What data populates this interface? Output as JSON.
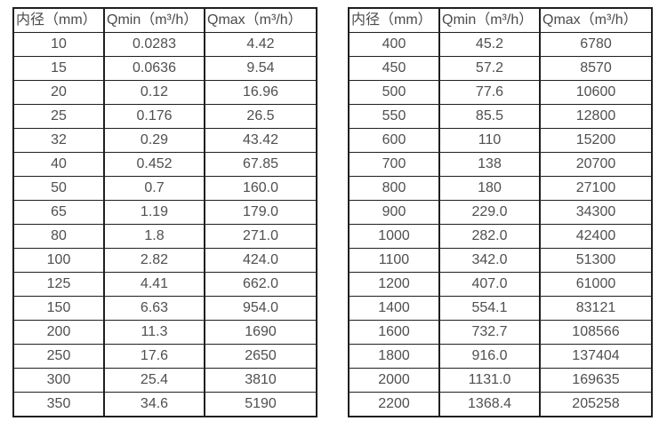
{
  "page": {
    "description": "Flow meter diameter vs minimum and maximum flow rate specification tables",
    "background_color": "#ffffff",
    "border_color": "#1f1f1f",
    "text_color": "#4a4a4a"
  },
  "tables": [
    {
      "name": "flow-spec-table-small-diameters",
      "headers": [
        "内径（mm）",
        "Qmin（m³/h）",
        "Qmax（m³/h）"
      ],
      "rows": [
        [
          "10",
          "0.0283",
          "4.42"
        ],
        [
          "15",
          "0.0636",
          "9.54"
        ],
        [
          "20",
          "0.12",
          "16.96"
        ],
        [
          "25",
          "0.176",
          "26.5"
        ],
        [
          "32",
          "0.29",
          "43.42"
        ],
        [
          "40",
          "0.452",
          "67.85"
        ],
        [
          "50",
          "0.7",
          "160.0"
        ],
        [
          "65",
          "1.19",
          "179.0"
        ],
        [
          "80",
          "1.8",
          "271.0"
        ],
        [
          "100",
          "2.82",
          "424.0"
        ],
        [
          "125",
          "4.41",
          "662.0"
        ],
        [
          "150",
          "6.63",
          "954.0"
        ],
        [
          "200",
          "11.3",
          "1690"
        ],
        [
          "250",
          "17.6",
          "2650"
        ],
        [
          "300",
          "25.4",
          "3810"
        ],
        [
          "350",
          "34.6",
          "5190"
        ]
      ]
    },
    {
      "name": "flow-spec-table-large-diameters",
      "headers": [
        "内径（mm）",
        "Qmin（m³/h）",
        "Qmax（m³/h）"
      ],
      "rows": [
        [
          "400",
          "45.2",
          "6780"
        ],
        [
          "450",
          "57.2",
          "8570"
        ],
        [
          "500",
          "77.6",
          "10600"
        ],
        [
          "550",
          "85.5",
          "12800"
        ],
        [
          "600",
          "110",
          "15200"
        ],
        [
          "700",
          "138",
          "20700"
        ],
        [
          "800",
          "180",
          "27100"
        ],
        [
          "900",
          "229.0",
          "34300"
        ],
        [
          "1000",
          "282.0",
          "42400"
        ],
        [
          "1100",
          "342.0",
          "51300"
        ],
        [
          "1200",
          "407.0",
          "61000"
        ],
        [
          "1400",
          "554.1",
          "83121"
        ],
        [
          "1600",
          "732.7",
          "108566"
        ],
        [
          "1800",
          "916.0",
          "137404"
        ],
        [
          "2000",
          "1131.0",
          "169635"
        ],
        [
          "2200",
          "1368.4",
          "205258"
        ]
      ]
    }
  ]
}
